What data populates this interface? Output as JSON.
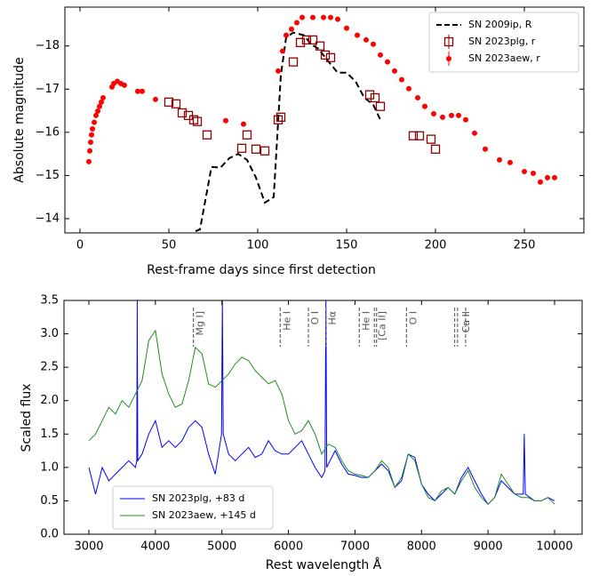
{
  "chart_data": [
    {
      "type": "scatter",
      "xlabel": "Rest-frame days since first detection",
      "ylabel": "Absolute magnitude",
      "xlim": [
        -8.5,
        283.5
      ],
      "ylim": [
        -13.67,
        -18.9
      ],
      "xticks": [
        0,
        50,
        100,
        150,
        200,
        250
      ],
      "yticks": [
        {
          "value": -14,
          "label": "−14"
        },
        {
          "value": -15,
          "label": "−15"
        },
        {
          "value": -16,
          "label": "−16"
        },
        {
          "value": -17,
          "label": "−17"
        },
        {
          "value": -18,
          "label": "−18"
        }
      ],
      "legend": "upper right",
      "series": [
        {
          "name": "SN 2009ip, R",
          "color": "#000000",
          "marker": "line",
          "linestyle": "dashed",
          "x": [
            65,
            67.5,
            74,
            79,
            84,
            89,
            94,
            99,
            104,
            109,
            113,
            116,
            120,
            126,
            130,
            134,
            140,
            145,
            150,
            155,
            160,
            165,
            169
          ],
          "values": [
            -13.71,
            -13.75,
            -15.2,
            -15.18,
            -15.4,
            -15.5,
            -15.36,
            -14.95,
            -14.37,
            -14.5,
            -17.32,
            -18.2,
            -18.31,
            -18.25,
            -18.04,
            -17.94,
            -17.63,
            -17.38,
            -17.38,
            -17.18,
            -16.8,
            -16.64,
            -16.29
          ]
        },
        {
          "name": "SN 2023plg, r",
          "color": "#8b0000",
          "marker": "square",
          "x": [
            50,
            54,
            57.5,
            61,
            64,
            66,
            71.5,
            91,
            94,
            99,
            104,
            111.5,
            113,
            120,
            124,
            127.5,
            131,
            135,
            138,
            141,
            163,
            166,
            169,
            187.5,
            191,
            197.5,
            200
          ],
          "values": [
            -16.7,
            -16.66,
            -16.45,
            -16.39,
            -16.29,
            -16.25,
            -15.94,
            -15.63,
            -15.94,
            -15.61,
            -15.57,
            -16.29,
            -16.35,
            -17.63,
            -18.08,
            -18.14,
            -18.14,
            -18.0,
            -17.79,
            -17.73,
            -16.87,
            -16.8,
            -16.6,
            -15.92,
            -15.92,
            -15.84,
            -15.61
          ]
        },
        {
          "name": "SN 2023aew, r",
          "color": "#ff0000",
          "marker": "circle",
          "x": [
            5,
            5.5,
            6,
            6.5,
            7,
            8,
            9,
            10,
            11,
            12,
            13,
            18,
            19,
            21,
            23,
            25,
            32.5,
            35,
            42.5,
            82,
            92,
            111.5,
            114,
            116,
            119,
            122,
            125,
            131,
            137,
            141,
            145,
            150,
            156,
            161,
            165,
            169,
            173,
            177,
            181,
            185,
            190,
            194,
            199,
            204,
            209,
            213,
            217,
            222,
            228,
            236,
            242,
            250,
            255,
            259,
            263,
            267
          ],
          "values": [
            -15.32,
            -15.57,
            -15.77,
            -15.94,
            -16.08,
            -16.23,
            -16.39,
            -16.49,
            -16.6,
            -16.7,
            -16.8,
            -17.05,
            -17.13,
            -17.18,
            -17.13,
            -17.09,
            -16.95,
            -16.95,
            -16.76,
            -16.27,
            -16.19,
            -17.42,
            -17.88,
            -18.25,
            -18.39,
            -18.54,
            -18.66,
            -18.66,
            -18.66,
            -18.66,
            -18.62,
            -18.41,
            -18.25,
            -18.14,
            -18.04,
            -17.79,
            -17.63,
            -17.42,
            -17.22,
            -17.01,
            -16.8,
            -16.6,
            -16.43,
            -16.35,
            -16.39,
            -16.39,
            -16.29,
            -15.98,
            -15.61,
            -15.36,
            -15.3,
            -15.09,
            -15.05,
            -14.85,
            -14.95,
            -14.95
          ]
        }
      ]
    },
    {
      "type": "line",
      "xlabel": "Rest wavelength Å",
      "ylabel": "Scaled flux",
      "xlim": [
        2626,
        10414
      ],
      "ylim": [
        0,
        3.5
      ],
      "xticks": [
        3000,
        4000,
        5000,
        6000,
        7000,
        8000,
        9000,
        10000
      ],
      "yticks": [
        {
          "value": 0,
          "label": "0.0"
        },
        0.5,
        {
          "value": 1,
          "label": "1.0"
        },
        1.5,
        {
          "value": 2,
          "label": "2.0"
        },
        2.5,
        {
          "value": 3,
          "label": "3.0"
        },
        3.5
      ],
      "legend": "lower left",
      "line_ids": [
        {
          "label": "Mg I]",
          "wavelengths": [
            4571
          ]
        },
        {
          "label": "He I",
          "wavelengths": [
            5876
          ]
        },
        {
          "label": "O I",
          "wavelengths": [
            6300
          ]
        },
        {
          "label": "Hα",
          "wavelengths": [
            6563
          ]
        },
        {
          "label": "He I",
          "wavelengths": [
            7065
          ]
        },
        {
          "label": "[Ca II]",
          "wavelengths": [
            7291,
            7324
          ]
        },
        {
          "label": "O I",
          "wavelengths": [
            7774
          ]
        },
        {
          "label": "Ca II",
          "wavelengths": [
            8498,
            8542,
            8662
          ]
        }
      ],
      "series": [
        {
          "name": "SN 2023plg, +83 d",
          "color": "#0000ff",
          "marker": "line",
          "x": [
            3000,
            3100,
            3200,
            3300,
            3400,
            3500,
            3600,
            3700,
            3720,
            3727,
            3735,
            3800,
            3900,
            4000,
            4100,
            4200,
            4300,
            4400,
            4500,
            4600,
            4700,
            4800,
            4900,
            4995,
            5007,
            5020,
            5100,
            5200,
            5300,
            5400,
            5500,
            5600,
            5700,
            5800,
            5900,
            6000,
            6100,
            6200,
            6300,
            6400,
            6500,
            6550,
            6563,
            6575,
            6700,
            6800,
            6900,
            7000,
            7100,
            7200,
            7300,
            7400,
            7500,
            7600,
            7700,
            7800,
            7900,
            8000,
            8100,
            8200,
            8300,
            8400,
            8500,
            8600,
            8700,
            8800,
            8900,
            9000,
            9100,
            9200,
            9300,
            9400,
            9530,
            9545,
            9560,
            9700,
            9800,
            9900,
            10000
          ],
          "values": [
            1.0,
            0.6,
            1.0,
            0.8,
            0.9,
            1.0,
            1.1,
            1.0,
            1.1,
            3.5,
            1.1,
            1.2,
            1.5,
            1.7,
            1.3,
            1.4,
            1.3,
            1.4,
            1.6,
            1.7,
            1.6,
            1.2,
            0.9,
            1.5,
            3.5,
            1.5,
            1.2,
            1.1,
            1.2,
            1.3,
            1.15,
            1.2,
            1.4,
            1.25,
            1.2,
            1.2,
            1.3,
            1.4,
            1.2,
            1.0,
            0.85,
            0.95,
            3.5,
            1.0,
            1.25,
            1.05,
            0.9,
            0.88,
            0.85,
            0.85,
            0.95,
            1.05,
            0.95,
            0.7,
            0.8,
            1.2,
            1.15,
            0.75,
            0.6,
            0.5,
            0.6,
            0.7,
            0.6,
            0.85,
            1.0,
            0.8,
            0.6,
            0.45,
            0.55,
            0.8,
            0.7,
            0.6,
            0.6,
            1.5,
            0.6,
            0.5,
            0.5,
            0.55,
            0.5
          ]
        },
        {
          "name": "SN 2023aew, +145 d",
          "color": "#228b22",
          "marker": "line",
          "x": [
            3000,
            3100,
            3200,
            3300,
            3400,
            3500,
            3600,
            3700,
            3800,
            3900,
            4000,
            4100,
            4200,
            4300,
            4400,
            4500,
            4600,
            4700,
            4800,
            4900,
            5000,
            5100,
            5200,
            5300,
            5400,
            5500,
            5600,
            5700,
            5800,
            5900,
            6000,
            6100,
            6200,
            6300,
            6400,
            6500,
            6600,
            6700,
            6800,
            6900,
            7000,
            7100,
            7200,
            7300,
            7400,
            7500,
            7600,
            7700,
            7800,
            7900,
            8000,
            8100,
            8200,
            8300,
            8400,
            8500,
            8600,
            8700,
            8800,
            8900,
            9000,
            9100,
            9200,
            9300,
            9400,
            9500,
            9600,
            9700,
            9800,
            9900,
            10000
          ],
          "values": [
            1.4,
            1.5,
            1.7,
            1.9,
            1.8,
            2.0,
            1.9,
            2.1,
            2.3,
            2.9,
            3.05,
            2.4,
            2.1,
            1.9,
            1.95,
            2.3,
            2.8,
            2.7,
            2.25,
            2.2,
            2.3,
            2.4,
            2.55,
            2.65,
            2.6,
            2.45,
            2.35,
            2.25,
            2.3,
            2.1,
            1.7,
            1.5,
            1.55,
            1.7,
            1.5,
            1.2,
            1.35,
            1.3,
            1.1,
            0.95,
            0.9,
            0.88,
            0.85,
            0.95,
            1.1,
            1.0,
            0.7,
            0.85,
            1.2,
            1.1,
            0.75,
            0.55,
            0.5,
            0.65,
            0.7,
            0.6,
            0.8,
            0.95,
            0.7,
            0.55,
            0.45,
            0.55,
            0.9,
            0.75,
            0.6,
            0.55,
            0.55,
            0.5,
            0.5,
            0.55,
            0.45
          ]
        }
      ]
    }
  ]
}
